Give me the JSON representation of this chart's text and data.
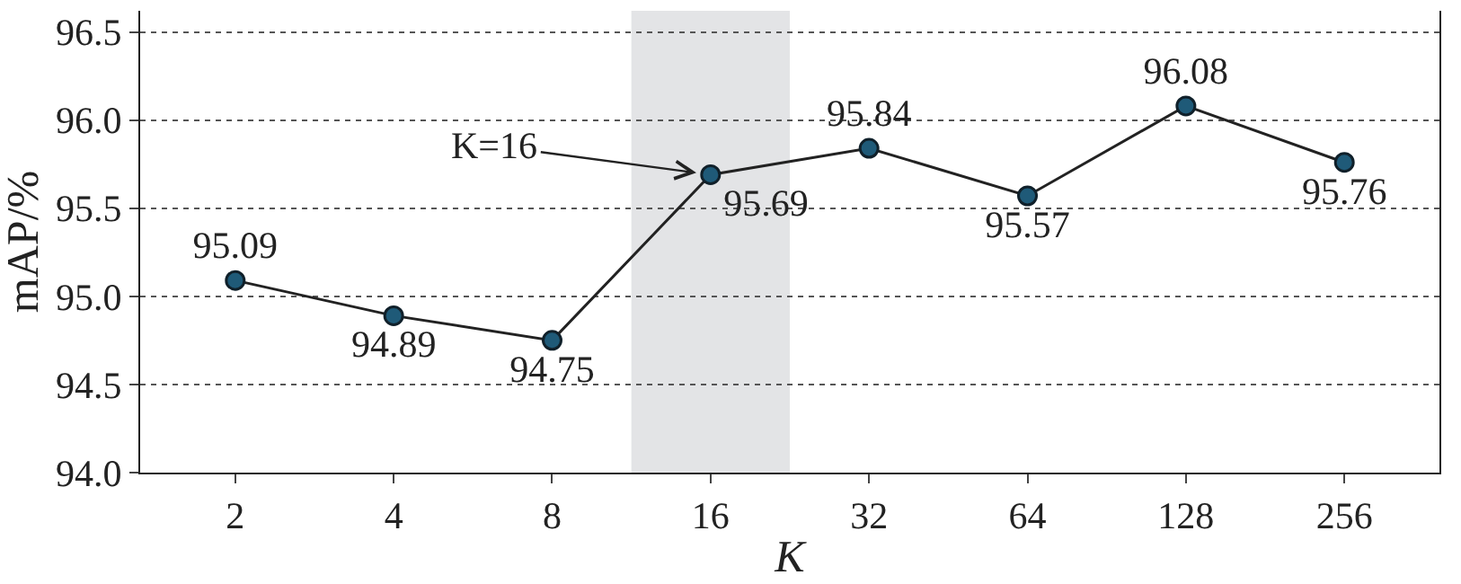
{
  "chart_data": {
    "type": "line",
    "xlabel": "K",
    "ylabel": "mAP/%",
    "categories": [
      "2",
      "4",
      "8",
      "16",
      "32",
      "64",
      "128",
      "256"
    ],
    "series": [
      {
        "color": "#1f5a78",
        "values": [
          95.09,
          94.89,
          94.75,
          95.69,
          95.84,
          95.57,
          96.08,
          95.76
        ]
      }
    ],
    "ylim": [
      94.0,
      96.62
    ],
    "yticks": [
      {
        "value": 94.0,
        "label": "94.0"
      },
      {
        "value": 94.5,
        "label": "94.5"
      },
      {
        "value": 95.0,
        "label": "95.0"
      },
      {
        "value": 95.5,
        "label": "95.5"
      },
      {
        "value": 96.0,
        "label": "96.0"
      },
      {
        "value": 96.5,
        "label": "96.5"
      }
    ],
    "grid": "y",
    "marker": "circle",
    "line_style": "solid",
    "data_labels": true,
    "bands": [
      {
        "axis": "x",
        "from": "16",
        "to": "16",
        "color": "#e3e4e6"
      }
    ],
    "annotations": [
      {
        "text": "K=16",
        "x": "16",
        "y": 95.69
      }
    ]
  }
}
